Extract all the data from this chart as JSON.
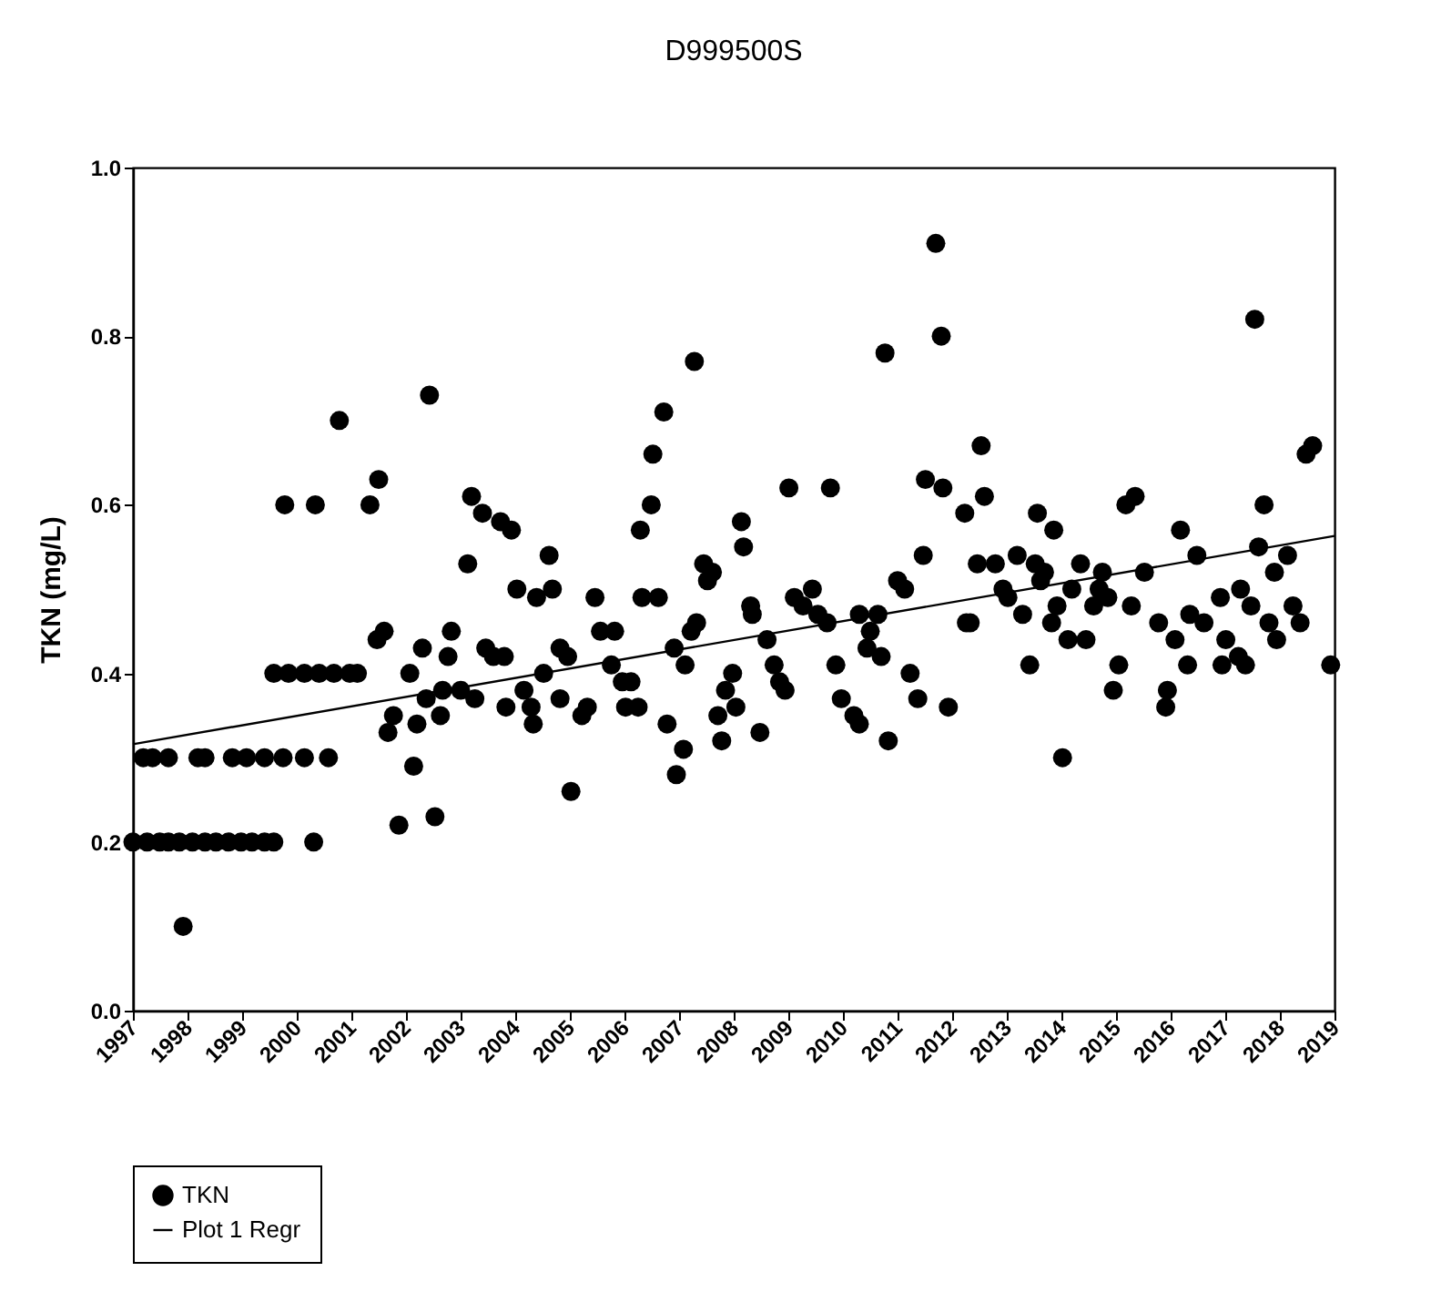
{
  "chart_data": {
    "type": "scatter",
    "title": "D999500S",
    "ylabel": "TKN (mg/L)",
    "xlim": [
      1997,
      2019
    ],
    "xticks": [
      1997,
      1998,
      1999,
      2000,
      2001,
      2002,
      2003,
      2004,
      2005,
      2006,
      2007,
      2008,
      2009,
      2010,
      2011,
      2012,
      2013,
      2014,
      2015,
      2016,
      2017,
      2018,
      2019
    ],
    "ylim": [
      0,
      1
    ],
    "yticks": [
      {
        "value": 0,
        "label": "0.0"
      },
      {
        "value": 0.2,
        "label": "0.2"
      },
      {
        "value": 0.4,
        "label": "0.4"
      },
      {
        "value": 0.6,
        "label": "0.6"
      },
      {
        "value": 0.8,
        "label": "0.8"
      },
      {
        "value": 1,
        "label": "1.0"
      }
    ],
    "grid": false,
    "legend": "bottom left",
    "series": [
      {
        "name": "TKN",
        "marker": "circle",
        "color": "#000000",
        "x": [
          1997.0,
          1997.19,
          1997.26,
          1997.36,
          1997.49,
          1997.65,
          1997.65,
          1997.85,
          1997.92,
          1998.09,
          1998.19,
          1998.32,
          1998.32,
          1998.52,
          1998.75,
          1998.82,
          1998.98,
          1999.08,
          1999.18,
          1999.41,
          1999.41,
          1999.58,
          1999.58,
          1999.75,
          1999.78,
          1999.85,
          2000.14,
          2000.14,
          2000.31,
          2000.34,
          2000.41,
          2000.58,
          2000.68,
          2000.78,
          2000.97,
          2001.11,
          2001.34,
          2001.47,
          2001.5,
          2001.6,
          2001.67,
          2001.77,
          2001.87,
          2002.07,
          2002.14,
          2002.2,
          2002.3,
          2002.37,
          2002.43,
          2002.53,
          2002.63,
          2002.67,
          2002.77,
          2002.83,
          2003.0,
          2003.13,
          2003.2,
          2003.26,
          2003.4,
          2003.46,
          2003.6,
          2003.73,
          2003.8,
          2003.83,
          2003.93,
          2004.03,
          2004.16,
          2004.29,
          2004.33,
          2004.39,
          2004.52,
          2004.62,
          2004.68,
          2004.82,
          2004.82,
          2004.96,
          2005.02,
          2005.22,
          2005.32,
          2005.46,
          2005.56,
          2005.76,
          2005.82,
          2005.96,
          2006.02,
          2006.12,
          2006.25,
          2006.29,
          2006.32,
          2006.49,
          2006.52,
          2006.62,
          2006.72,
          2006.78,
          2006.91,
          2006.95,
          2007.08,
          2007.11,
          2007.22,
          2007.28,
          2007.32,
          2007.45,
          2007.52,
          2007.61,
          2007.71,
          2007.78,
          2007.85,
          2007.98,
          2008.04,
          2008.14,
          2008.18,
          2008.31,
          2008.34,
          2008.48,
          2008.61,
          2008.74,
          2008.84,
          2008.94,
          2009.01,
          2009.11,
          2009.27,
          2009.44,
          2009.54,
          2009.71,
          2009.77,
          2009.87,
          2009.97,
          2010.2,
          2010.3,
          2010.3,
          2010.44,
          2010.5,
          2010.64,
          2010.7,
          2010.77,
          2010.83,
          2011.0,
          2011.13,
          2011.23,
          2011.37,
          2011.47,
          2011.51,
          2011.7,
          2011.8,
          2011.83,
          2011.93,
          2012.23,
          2012.26,
          2012.33,
          2012.46,
          2012.53,
          2012.59,
          2012.79,
          2012.93,
          2013.02,
          2013.19,
          2013.29,
          2013.42,
          2013.52,
          2013.56,
          2013.62,
          2013.69,
          2013.82,
          2013.86,
          2013.92,
          2014.02,
          2014.12,
          2014.19,
          2014.35,
          2014.45,
          2014.59,
          2014.69,
          2014.75,
          2014.85,
          2014.95,
          2015.05,
          2015.18,
          2015.28,
          2015.35,
          2015.52,
          2015.78,
          2015.91,
          2015.94,
          2016.08,
          2016.18,
          2016.31,
          2016.35,
          2016.48,
          2016.61,
          2016.91,
          2016.94,
          2017.01,
          2017.24,
          2017.28,
          2017.37,
          2017.47,
          2017.54,
          2017.61,
          2017.71,
          2017.8,
          2017.9,
          2017.94,
          2018.14,
          2018.24,
          2018.37,
          2018.48,
          2018.6,
          2018.93
        ],
        "values": [
          0.2,
          0.3,
          0.2,
          0.3,
          0.2,
          0.2,
          0.3,
          0.2,
          0.1,
          0.2,
          0.3,
          0.2,
          0.3,
          0.2,
          0.2,
          0.3,
          0.2,
          0.3,
          0.2,
          0.2,
          0.3,
          0.2,
          0.4,
          0.3,
          0.6,
          0.4,
          0.3,
          0.4,
          0.2,
          0.6,
          0.4,
          0.3,
          0.4,
          0.7,
          0.4,
          0.4,
          0.6,
          0.44,
          0.63,
          0.45,
          0.33,
          0.35,
          0.22,
          0.4,
          0.29,
          0.34,
          0.43,
          0.37,
          0.73,
          0.23,
          0.35,
          0.38,
          0.42,
          0.45,
          0.38,
          0.53,
          0.61,
          0.37,
          0.59,
          0.43,
          0.42,
          0.58,
          0.42,
          0.36,
          0.57,
          0.5,
          0.38,
          0.36,
          0.34,
          0.49,
          0.4,
          0.54,
          0.5,
          0.43,
          0.37,
          0.42,
          0.26,
          0.35,
          0.36,
          0.49,
          0.45,
          0.41,
          0.45,
          0.39,
          0.36,
          0.39,
          0.36,
          0.57,
          0.49,
          0.6,
          0.66,
          0.49,
          0.71,
          0.34,
          0.43,
          0.28,
          0.31,
          0.41,
          0.45,
          0.77,
          0.46,
          0.53,
          0.51,
          0.52,
          0.35,
          0.32,
          0.38,
          0.4,
          0.36,
          0.58,
          0.55,
          0.48,
          0.47,
          0.33,
          0.44,
          0.41,
          0.39,
          0.38,
          0.62,
          0.49,
          0.48,
          0.5,
          0.47,
          0.46,
          0.62,
          0.41,
          0.37,
          0.35,
          0.47,
          0.34,
          0.43,
          0.45,
          0.47,
          0.42,
          0.78,
          0.32,
          0.51,
          0.5,
          0.4,
          0.37,
          0.54,
          0.63,
          0.91,
          0.8,
          0.62,
          0.36,
          0.59,
          0.46,
          0.46,
          0.53,
          0.67,
          0.61,
          0.53,
          0.5,
          0.49,
          0.54,
          0.47,
          0.41,
          0.53,
          0.59,
          0.51,
          0.52,
          0.46,
          0.57,
          0.48,
          0.3,
          0.44,
          0.5,
          0.53,
          0.44,
          0.48,
          0.5,
          0.52,
          0.49,
          0.38,
          0.41,
          0.6,
          0.48,
          0.61,
          0.52,
          0.46,
          0.36,
          0.38,
          0.44,
          0.57,
          0.41,
          0.47,
          0.54,
          0.46,
          0.49,
          0.41,
          0.44,
          0.42,
          0.5,
          0.41,
          0.48,
          0.82,
          0.55,
          0.6,
          0.46,
          0.52,
          0.44,
          0.54,
          0.48,
          0.46,
          0.66,
          0.67,
          0.41
        ]
      },
      {
        "name": "Plot 1 Regr",
        "type": "line",
        "line_style": "solid",
        "color": "#000000",
        "x": [
          1997,
          2019
        ],
        "values": [
          0.316,
          0.563
        ]
      }
    ]
  }
}
